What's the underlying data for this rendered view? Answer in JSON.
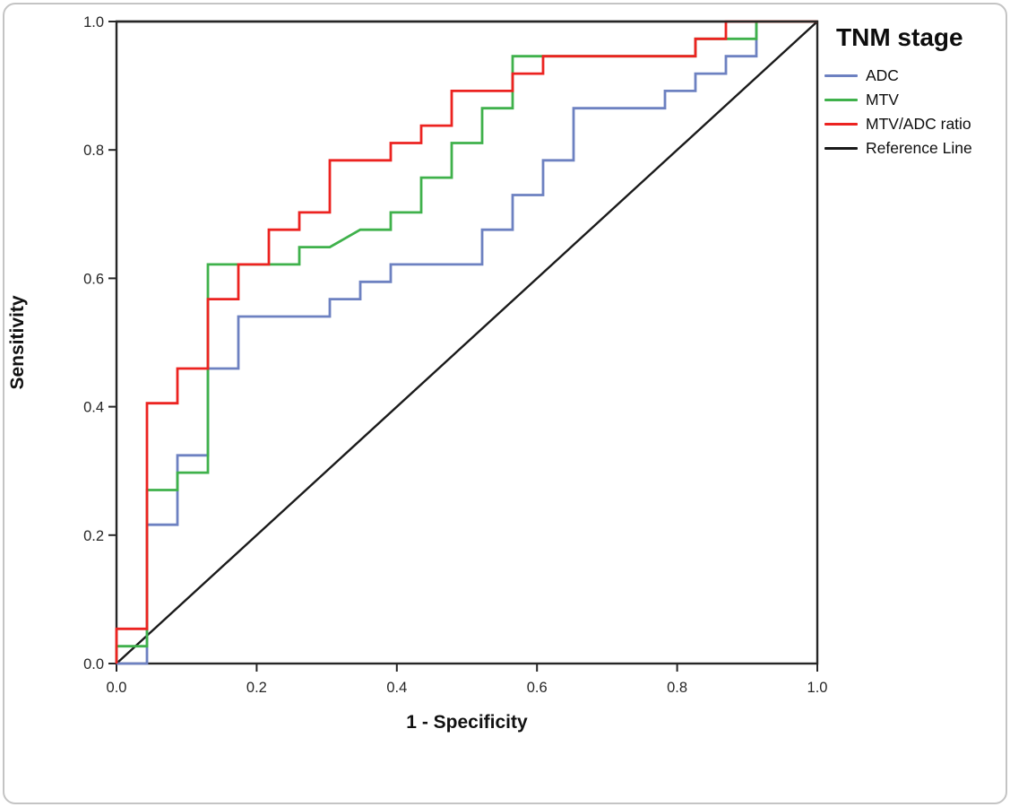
{
  "chart_data": {
    "type": "line",
    "subtype": "roc-step-curves",
    "legend_title": "TNM stage",
    "xlabel": "1 - Specificity",
    "ylabel": "Sensitivity",
    "xlim": [
      0,
      1
    ],
    "ylim": [
      0,
      1
    ],
    "grid": false,
    "legend_position": "top-right-outside",
    "x_ticks": {
      "values": [
        0,
        0.2,
        0.4,
        0.6,
        0.8,
        1.0
      ],
      "labels": [
        "0.0",
        "0.2",
        "0.4",
        "0.6",
        "0.8",
        "1.0"
      ]
    },
    "y_ticks": {
      "values": [
        0,
        0.2,
        0.4,
        0.6,
        0.8,
        1.0
      ],
      "labels": [
        "0.0",
        "0.2",
        "0.4",
        "0.6",
        "0.8",
        "1.0"
      ]
    },
    "frame_color": "#262626",
    "tick_label_color": "#262626",
    "draw_order": [
      "Reference Line",
      "ADC",
      "MTV",
      "MTV/ADC ratio"
    ],
    "series": [
      {
        "name": "ADC",
        "color": "#6D81C1",
        "width": 2.8,
        "points": [
          [
            0,
            0
          ],
          [
            0.0435,
            0
          ],
          [
            0.0435,
            0.2162
          ],
          [
            0.087,
            0.2162
          ],
          [
            0.087,
            0.3243
          ],
          [
            0.1304,
            0.3243
          ],
          [
            0.1304,
            0.4595
          ],
          [
            0.1739,
            0.4595
          ],
          [
            0.1739,
            0.5405
          ],
          [
            0.3043,
            0.5405
          ],
          [
            0.3043,
            0.5676
          ],
          [
            0.3478,
            0.5676
          ],
          [
            0.3478,
            0.5946
          ],
          [
            0.3913,
            0.5946
          ],
          [
            0.3913,
            0.6216
          ],
          [
            0.5217,
            0.6216
          ],
          [
            0.5217,
            0.6757
          ],
          [
            0.5652,
            0.6757
          ],
          [
            0.5652,
            0.7297
          ],
          [
            0.6087,
            0.7297
          ],
          [
            0.6087,
            0.7838
          ],
          [
            0.6522,
            0.7838
          ],
          [
            0.6522,
            0.8649
          ],
          [
            0.7826,
            0.8649
          ],
          [
            0.7826,
            0.8919
          ],
          [
            0.8261,
            0.8919
          ],
          [
            0.8261,
            0.9189
          ],
          [
            0.8696,
            0.9189
          ],
          [
            0.8696,
            0.9459
          ],
          [
            0.913,
            0.9459
          ],
          [
            0.913,
            1
          ],
          [
            1,
            1
          ]
        ]
      },
      {
        "name": "MTV",
        "color": "#3FB14B",
        "width": 2.8,
        "points": [
          [
            0,
            0
          ],
          [
            0,
            0.027
          ],
          [
            0.0435,
            0.027
          ],
          [
            0.0435,
            0.2703
          ],
          [
            0.087,
            0.2703
          ],
          [
            0.087,
            0.2973
          ],
          [
            0.1304,
            0.2973
          ],
          [
            0.1304,
            0.6216
          ],
          [
            0.2609,
            0.6216
          ],
          [
            0.2609,
            0.6486
          ],
          [
            0.3043,
            0.6486
          ],
          [
            0.3478,
            0.6757
          ],
          [
            0.3913,
            0.6757
          ],
          [
            0.3913,
            0.7027
          ],
          [
            0.4348,
            0.7027
          ],
          [
            0.4348,
            0.7568
          ],
          [
            0.4783,
            0.7568
          ],
          [
            0.4783,
            0.8108
          ],
          [
            0.5217,
            0.8108
          ],
          [
            0.5217,
            0.8649
          ],
          [
            0.5652,
            0.8649
          ],
          [
            0.5652,
            0.9459
          ],
          [
            0.8261,
            0.9459
          ],
          [
            0.8261,
            0.973
          ],
          [
            0.913,
            0.973
          ],
          [
            0.913,
            1
          ],
          [
            1,
            1
          ]
        ]
      },
      {
        "name": "MTV/ADC ratio",
        "color": "#EC2320",
        "width": 2.8,
        "points": [
          [
            0,
            0
          ],
          [
            0,
            0.0541
          ],
          [
            0.0435,
            0.0541
          ],
          [
            0.0435,
            0.4054
          ],
          [
            0.087,
            0.4054
          ],
          [
            0.087,
            0.4595
          ],
          [
            0.1304,
            0.4595
          ],
          [
            0.1304,
            0.5676
          ],
          [
            0.1739,
            0.5676
          ],
          [
            0.1739,
            0.6216
          ],
          [
            0.2174,
            0.6216
          ],
          [
            0.2174,
            0.6757
          ],
          [
            0.2609,
            0.6757
          ],
          [
            0.2609,
            0.7027
          ],
          [
            0.3043,
            0.7027
          ],
          [
            0.3043,
            0.7838
          ],
          [
            0.3913,
            0.7838
          ],
          [
            0.3913,
            0.8108
          ],
          [
            0.4348,
            0.8108
          ],
          [
            0.4348,
            0.8378
          ],
          [
            0.4783,
            0.8378
          ],
          [
            0.4783,
            0.8919
          ],
          [
            0.5652,
            0.8919
          ],
          [
            0.5652,
            0.9189
          ],
          [
            0.6087,
            0.9189
          ],
          [
            0.6087,
            0.9459
          ],
          [
            0.8261,
            0.9459
          ],
          [
            0.8261,
            0.973
          ],
          [
            0.8696,
            0.973
          ],
          [
            0.8696,
            1
          ],
          [
            1,
            1
          ]
        ]
      },
      {
        "name": "Reference Line",
        "color": "#1A1A1A",
        "width": 2.4,
        "points": [
          [
            0,
            0
          ],
          [
            1,
            1
          ]
        ]
      }
    ]
  }
}
